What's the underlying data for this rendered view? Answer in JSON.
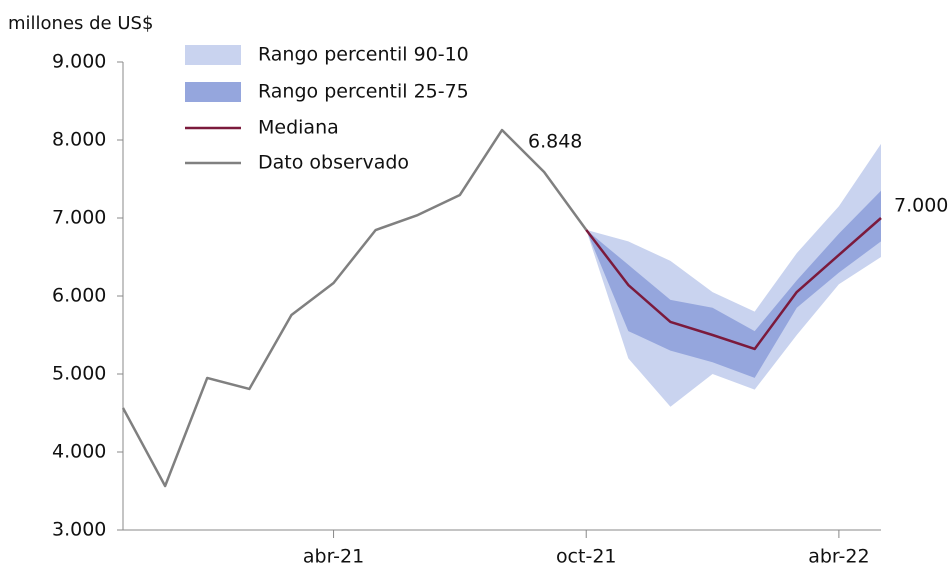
{
  "chart_data": {
    "type": "fan",
    "y_label": "millones de US$",
    "categories": [
      null,
      null,
      null,
      null,
      null,
      "abr-21",
      null,
      null,
      null,
      null,
      null,
      "oct-21",
      null,
      null,
      null,
      null,
      null,
      "abr-22",
      null
    ],
    "ylim": [
      3000,
      9000
    ],
    "yticks": [
      {
        "value": 3000,
        "label": "3.000"
      },
      {
        "value": 4000,
        "label": "4.000"
      },
      {
        "value": 5000,
        "label": "5.000"
      },
      {
        "value": 6000,
        "label": "6.000"
      },
      {
        "value": 7000,
        "label": "7.000"
      },
      {
        "value": 8000,
        "label": "8.000"
      },
      {
        "value": 9000,
        "label": "9.000"
      }
    ],
    "bands": [
      {
        "name": "Rango percentil 90-10",
        "color": "#c9d3ef",
        "lower": [
          null,
          null,
          null,
          null,
          null,
          null,
          null,
          null,
          null,
          null,
          null,
          6848,
          5200,
          4580,
          5000,
          4800,
          5500,
          6150,
          6500
        ],
        "upper": [
          null,
          null,
          null,
          null,
          null,
          null,
          null,
          null,
          null,
          null,
          null,
          6848,
          6700,
          6450,
          6050,
          5800,
          6550,
          7150,
          7950
        ]
      },
      {
        "name": "Rango percentil 25-75",
        "color": "#95a6dd",
        "lower": [
          null,
          null,
          null,
          null,
          null,
          null,
          null,
          null,
          null,
          null,
          null,
          6848,
          5550,
          5300,
          5150,
          4950,
          5850,
          6300,
          6700
        ],
        "upper": [
          null,
          null,
          null,
          null,
          null,
          null,
          null,
          null,
          null,
          null,
          null,
          6848,
          6400,
          5950,
          5850,
          5550,
          6200,
          6800,
          7350
        ]
      }
    ],
    "series": [
      {
        "name": "Mediana",
        "color": "#7b1a3c",
        "values": [
          null,
          null,
          null,
          null,
          null,
          null,
          null,
          null,
          null,
          null,
          null,
          6848,
          6141,
          5667,
          5500,
          5321,
          6051,
          6526,
          7000
        ]
      },
      {
        "name": "Dato observado",
        "color": "#808080",
        "values": [
          4564,
          3564,
          4949,
          4808,
          5756,
          6167,
          6846,
          7038,
          7295,
          8128,
          7590,
          6848,
          null,
          null,
          null,
          null,
          null,
          null,
          null
        ]
      }
    ],
    "annotations": [
      {
        "text": "6.848",
        "color": "#111111"
      },
      {
        "text": "7.000",
        "color": "#7b1a3c"
      }
    ]
  }
}
